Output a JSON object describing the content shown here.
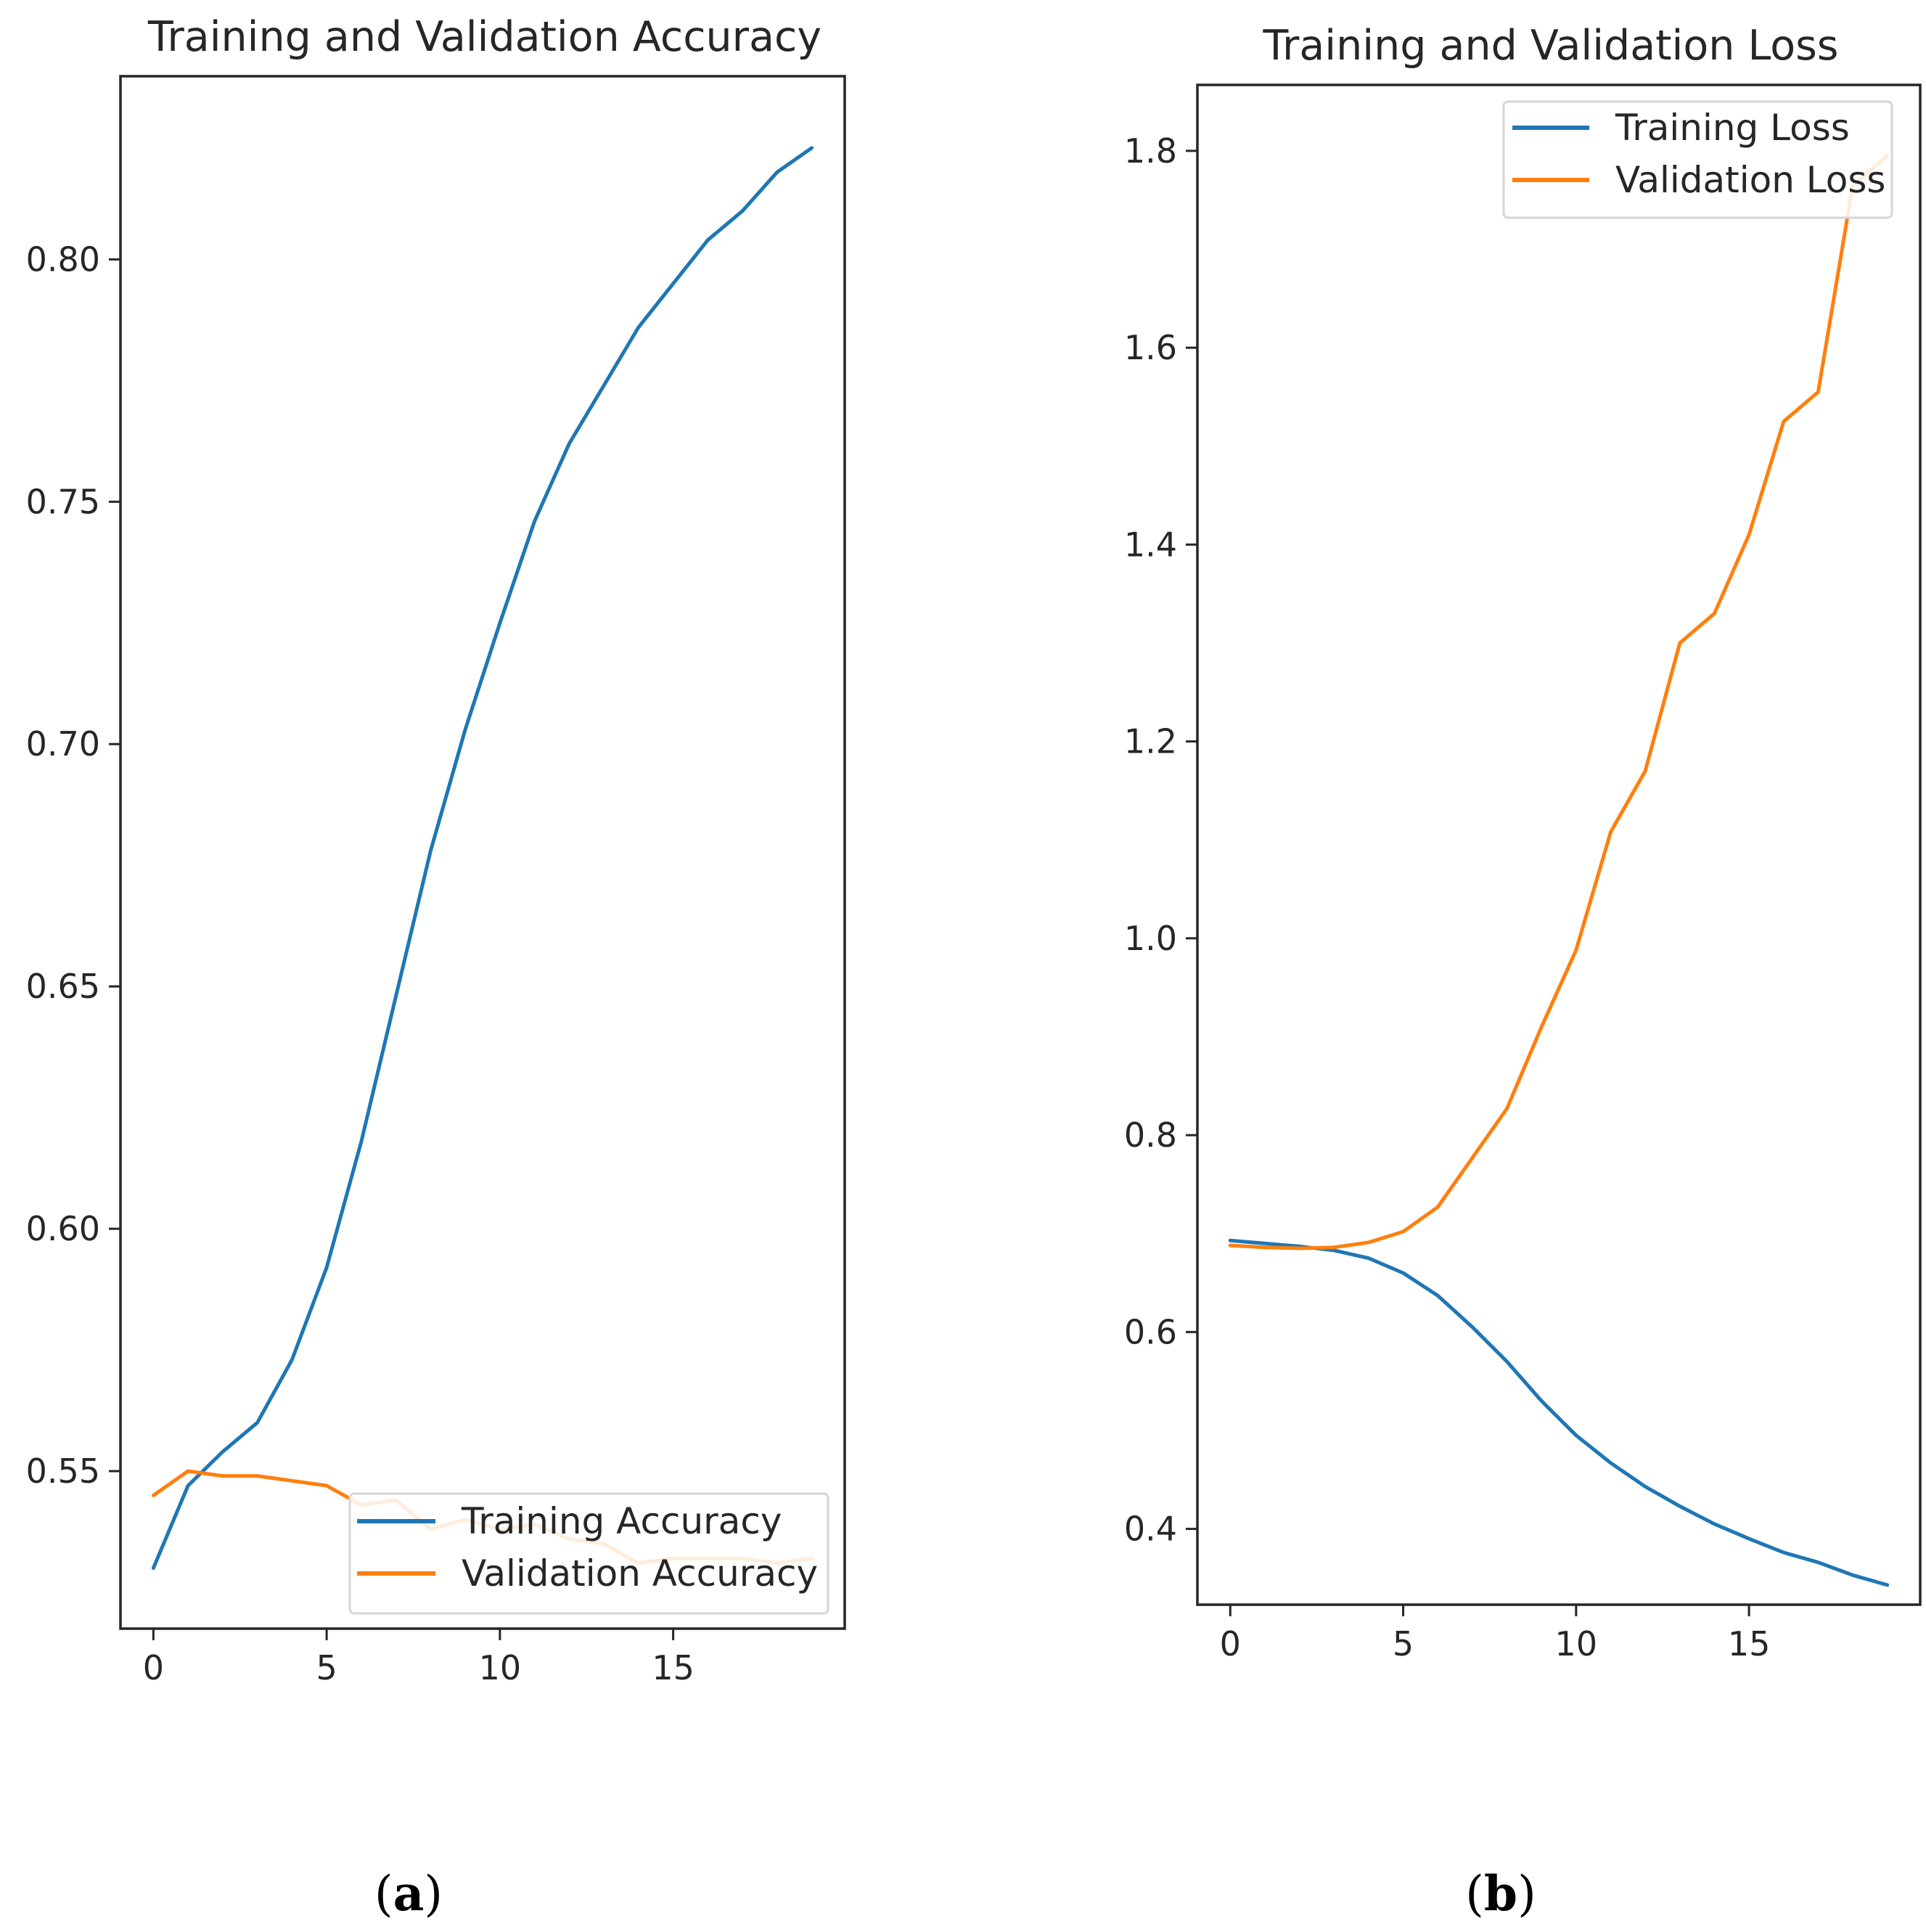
{
  "colors": {
    "training": "#1f77b4",
    "validation": "#ff7f0e",
    "axis": "#262626"
  },
  "chart_data": [
    {
      "type": "line",
      "panel": "(a)",
      "title": "Training and Validation Accuracy",
      "xlabel": "",
      "ylabel": "",
      "xlim": [
        -0.95,
        19.95
      ],
      "ylim": [
        0.5175,
        0.8378
      ],
      "xticks": [
        0,
        5,
        10,
        15
      ],
      "xtick_labels": [
        "0",
        "5",
        "10",
        "15"
      ],
      "yticks": [
        0.55,
        0.6,
        0.65,
        0.7,
        0.75,
        0.8
      ],
      "ytick_labels": [
        "0.55",
        "0.60",
        "0.65",
        "0.70",
        "0.75",
        "0.80"
      ],
      "legend_location": "lower right",
      "x": [
        0,
        1,
        2,
        3,
        4,
        5,
        6,
        7,
        8,
        9,
        10,
        11,
        12,
        13,
        14,
        15,
        16,
        17,
        18,
        19
      ],
      "series": [
        {
          "name": "Training Accuracy",
          "color": "#1f77b4",
          "values": [
            0.53,
            0.547,
            0.554,
            0.56,
            0.573,
            0.592,
            0.618,
            0.648,
            0.678,
            0.703,
            0.725,
            0.746,
            0.762,
            0.774,
            0.786,
            0.795,
            0.804,
            0.81,
            0.818,
            0.823
          ]
        },
        {
          "name": "Validation Accuracy",
          "color": "#ff7f0e",
          "values": [
            0.545,
            0.55,
            0.549,
            0.549,
            0.548,
            0.547,
            0.543,
            0.544,
            0.538,
            0.54,
            0.538,
            0.539,
            0.536,
            0.535,
            0.531,
            0.532,
            0.532,
            0.532,
            0.531,
            0.532
          ]
        }
      ]
    },
    {
      "type": "line",
      "panel": "(b)",
      "title": "Training and Validation Loss",
      "xlabel": "",
      "ylabel": "",
      "xlim": [
        -0.95,
        19.95
      ],
      "ylim": [
        0.323,
        1.867
      ],
      "xticks": [
        0,
        5,
        10,
        15
      ],
      "xtick_labels": [
        "0",
        "5",
        "10",
        "15"
      ],
      "yticks": [
        0.4,
        0.6,
        0.8,
        1.0,
        1.2,
        1.4,
        1.6,
        1.8
      ],
      "ytick_labels": [
        "0.4",
        "0.6",
        "0.8",
        "1.0",
        "1.2",
        "1.4",
        "1.6",
        "1.8"
      ],
      "legend_location": "upper right",
      "x": [
        0,
        1,
        2,
        3,
        4,
        5,
        6,
        7,
        8,
        9,
        10,
        11,
        12,
        13,
        14,
        15,
        16,
        17,
        18,
        19
      ],
      "series": [
        {
          "name": "Training Loss",
          "color": "#1f77b4",
          "values": [
            0.693,
            0.69,
            0.687,
            0.683,
            0.675,
            0.66,
            0.637,
            0.605,
            0.57,
            0.53,
            0.495,
            0.467,
            0.443,
            0.423,
            0.405,
            0.39,
            0.376,
            0.366,
            0.353,
            0.343
          ]
        },
        {
          "name": "Validation Loss",
          "color": "#ff7f0e",
          "values": [
            0.688,
            0.686,
            0.685,
            0.686,
            0.691,
            0.702,
            0.727,
            0.777,
            0.827,
            0.91,
            0.988,
            1.108,
            1.17,
            1.3,
            1.33,
            1.41,
            1.525,
            1.555,
            1.765,
            1.795
          ]
        }
      ]
    }
  ]
}
